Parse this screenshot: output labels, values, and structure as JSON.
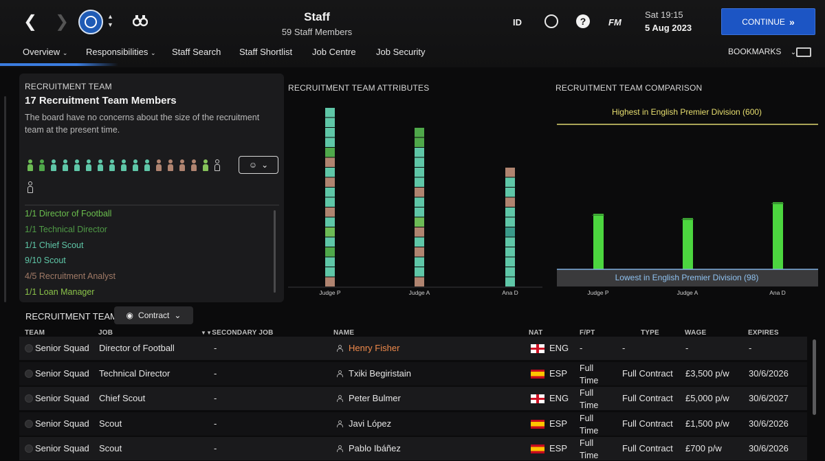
{
  "header": {
    "title": "Staff",
    "subtitle": "59 Staff Members",
    "id_label": "ID",
    "fm_label": "FM",
    "help_label": "?",
    "time": "Sat 19:15",
    "date": "5 Aug 2023",
    "continue_label": "CONTINUE",
    "icons": [
      "back-arrow-icon",
      "forward-arrow-icon",
      "club-badge",
      "up-down-icon",
      "binoculars-icon",
      "globe-icon",
      "help-icon",
      "monitor-icon"
    ]
  },
  "subnav": {
    "items": [
      {
        "label": "Overview",
        "dropdown": true,
        "active": true
      },
      {
        "label": "Responsibilities",
        "dropdown": true
      },
      {
        "label": "Staff Search"
      },
      {
        "label": "Staff Shortlist"
      },
      {
        "label": "Job Centre"
      },
      {
        "label": "Job Security"
      }
    ],
    "bookmarks_label": "BOOKMARKS"
  },
  "recruitment_panel": {
    "label": "RECRUITMENT TEAM",
    "title": "17 Recruitment Team Members",
    "description": "The board have no concerns about the size of the recruitment team at the present time.",
    "people_colors": [
      "#6dbb55",
      "#4fa84a",
      "#5fc7a8",
      "#5fc7a8",
      "#5fc7a8",
      "#5fc7a8",
      "#5fc7a8",
      "#5fc7a8",
      "#5fc7a8",
      "#5fc7a8",
      "#5fc7a8",
      "#b08470",
      "#b08470",
      "#b08470",
      "#b08470",
      "#86c25a",
      "#cccccc",
      "#cccccc"
    ],
    "roles": [
      {
        "text": "1/1 Director of Football",
        "color": "#6bbf4e"
      },
      {
        "text": "1/1 Technical Director",
        "color": "#4f9a46"
      },
      {
        "text": "1/1 Chief Scout",
        "color": "#5fc7a8"
      },
      {
        "text": "9/10 Scout",
        "color": "#5fc7a8"
      },
      {
        "text": "4/5 Recruitment Analyst",
        "color": "#a07a66"
      },
      {
        "text": "1/1 Loan Manager",
        "color": "#8bc34a"
      }
    ]
  },
  "chart_data": [
    {
      "type": "bar",
      "title": "RECRUITMENT TEAM ATTRIBUTES",
      "categories": [
        "Judge P",
        "Judge A",
        "Ana D"
      ],
      "values": [
        18,
        16,
        12
      ],
      "stacks": [
        [
          "#b08470",
          "#5fc7a8",
          "#5fc7a8",
          "#4fa84a",
          "#5fc7a8",
          "#6dbb55",
          "#5fc7a8",
          "#b08470",
          "#5fc7a8",
          "#5fc7a8",
          "#b08470",
          "#5fc7a8",
          "#b08470",
          "#4fa84a",
          "#5fc7a8",
          "#5fc7a8",
          "#5fc7a8",
          "#5fc7a8"
        ],
        [
          "#b08470",
          "#5fc7a8",
          "#5fc7a8",
          "#b08470",
          "#5fc7a8",
          "#b08470",
          "#6dbb55",
          "#5fc7a8",
          "#5fc7a8",
          "#b08470",
          "#5fc7a8",
          "#5fc7a8",
          "#5fc7a8",
          "#5fc7a8",
          "#4fa84a",
          "#4fa84a"
        ],
        [
          "#5fc7a8",
          "#5fc7a8",
          "#5fc7a8",
          "#5fc7a8",
          "#5fc7a8",
          "#3a9a8a",
          "#5fc7a8",
          "#5fc7a8",
          "#b08470",
          "#5fc7a8",
          "#5fc7a8",
          "#b08470"
        ]
      ]
    },
    {
      "type": "bar",
      "title": "RECRUITMENT TEAM COMPARISON",
      "categories": [
        "Judge P",
        "Judge A",
        "Ana D"
      ],
      "values": [
        290,
        275,
        330
      ],
      "ylim": [
        0,
        600
      ],
      "highest_label": "Highest in English Premier Division (600)",
      "lowest_label": "Lowest in English Premier Division (98)",
      "lowest_value": 98,
      "bar_color": "#4cd63f"
    }
  ],
  "table": {
    "title": "RECRUITMENT TEAM",
    "filter_label": "Contract",
    "columns": [
      "TEAM",
      "JOB",
      "SECONDARY JOB",
      "NAME",
      "NAT",
      "F/PT",
      "TYPE",
      "WAGE",
      "EXPIRES"
    ],
    "rows": [
      {
        "team": "Senior Squad",
        "job": "Director of Football",
        "secondary": "-",
        "name": "Henry Fisher",
        "name_color": "#f08a4b",
        "flag": "eng",
        "nat": "ENG",
        "fpt": "-",
        "type": "-",
        "wage": "-",
        "expires": "-"
      },
      {
        "team": "Senior Squad",
        "job": "Technical Director",
        "secondary": "-",
        "name": "Txiki Begiristain",
        "flag": "esp",
        "nat": "ESP",
        "fpt": "Full Time",
        "type": "Full Contract",
        "wage": "£3,500 p/w",
        "expires": "30/6/2026"
      },
      {
        "team": "Senior Squad",
        "job": "Chief Scout",
        "secondary": "-",
        "name": "Peter Bulmer",
        "flag": "eng",
        "nat": "ENG",
        "fpt": "Full Time",
        "type": "Full Contract",
        "wage": "£5,000 p/w",
        "expires": "30/6/2027"
      },
      {
        "team": "Senior Squad",
        "job": "Scout",
        "secondary": "-",
        "name": "Javi López",
        "flag": "esp",
        "nat": "ESP",
        "fpt": "Full Time",
        "type": "Full Contract",
        "wage": "£1,500 p/w",
        "expires": "30/6/2026"
      },
      {
        "team": "Senior Squad",
        "job": "Scout",
        "secondary": "-",
        "name": "Pablo Ibáñez",
        "flag": "esp",
        "nat": "ESP",
        "fpt": "Full Time",
        "type": "Full Contract",
        "wage": "£700 p/w",
        "expires": "30/6/2026"
      }
    ]
  }
}
